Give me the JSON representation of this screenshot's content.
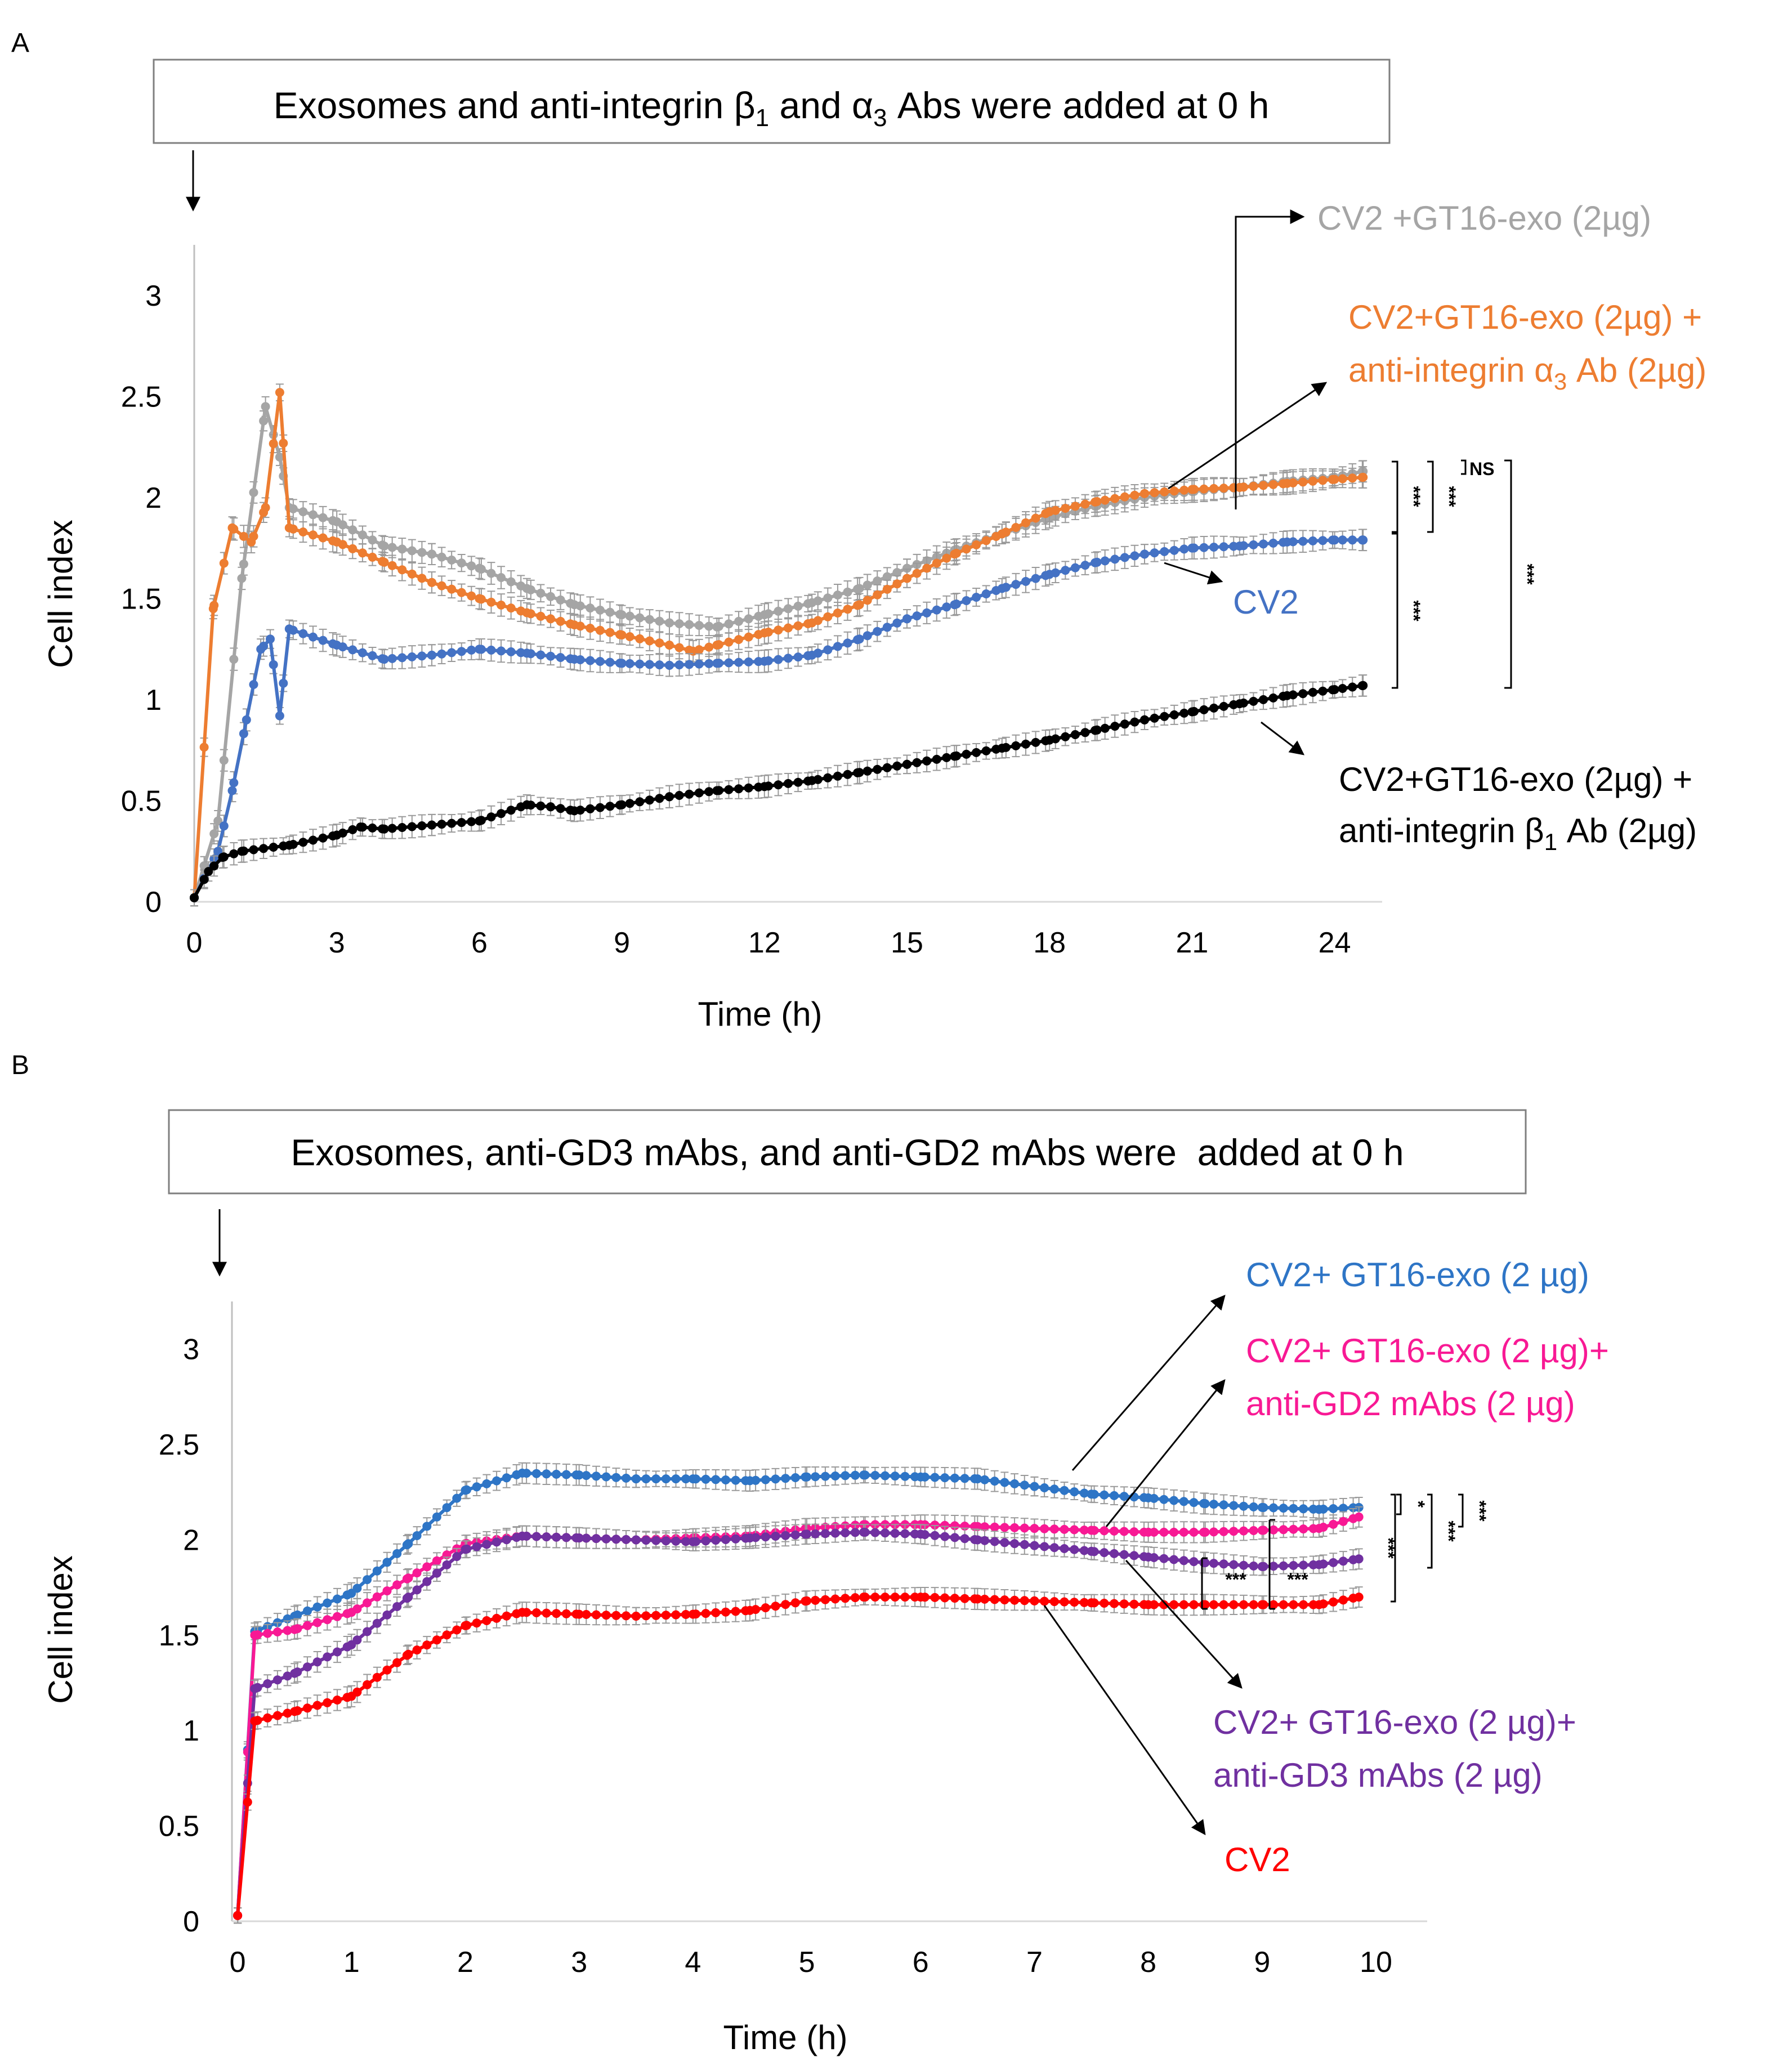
{
  "figure": {
    "background": "#ffffff"
  },
  "chart_data": [
    {
      "panel": "A",
      "type": "line",
      "banner": {
        "before": "Exosomes and anti-integrin β",
        "sub1": "1",
        "middle": " and α",
        "sub2": "3",
        "after": " Abs were added at 0 h"
      },
      "xlabel": "Time (h)",
      "ylabel": "Cell index",
      "xlim": [
        0,
        25
      ],
      "ylim": [
        0,
        3.25
      ],
      "xticks": [
        "0",
        "3",
        "6",
        "9",
        "12",
        "15",
        "18",
        "21",
        "24"
      ],
      "yticks": [
        "0",
        "0.5",
        "1",
        "1.5",
        "2",
        "2.5",
        "3"
      ],
      "series": [
        {
          "name": "CV2 +GT16-exo (2µg)",
          "color": "#A5A5A5",
          "points": [
            [
              0,
              0.02
            ],
            [
              0.5,
              0.4
            ],
            [
              1,
              1.6
            ],
            [
              1.5,
              2.45
            ],
            [
              1.8,
              2.2
            ],
            [
              2,
              1.95
            ],
            [
              3,
              1.88
            ],
            [
              4,
              1.76
            ],
            [
              5,
              1.72
            ],
            [
              6,
              1.65
            ],
            [
              7,
              1.55
            ],
            [
              8,
              1.47
            ],
            [
              9,
              1.42
            ],
            [
              10,
              1.38
            ],
            [
              11,
              1.36
            ],
            [
              12,
              1.42
            ],
            [
              13,
              1.48
            ],
            [
              14,
              1.55
            ],
            [
              15,
              1.65
            ],
            [
              16,
              1.74
            ],
            [
              17,
              1.82
            ],
            [
              18,
              1.9
            ],
            [
              19,
              1.96
            ],
            [
              20,
              2.0
            ],
            [
              21,
              2.03
            ],
            [
              22,
              2.05
            ],
            [
              23,
              2.08
            ],
            [
              24,
              2.1
            ],
            [
              24.6,
              2.13
            ]
          ]
        },
        {
          "name": "CV2+GT16-exo (2µg) + anti-integrin α3 Ab (2µg)",
          "label": {
            "line1": "CV2+GT16-exo (2µg) +",
            "line2_before": "anti-integrin α",
            "line2_sub": "3",
            "line2_after": " Ab (2µg)"
          },
          "color": "#ED7D31",
          "points": [
            [
              0,
              0.02
            ],
            [
              0.4,
              1.45
            ],
            [
              0.8,
              1.85
            ],
            [
              1.2,
              1.78
            ],
            [
              1.5,
              1.95
            ],
            [
              1.8,
              2.52
            ],
            [
              2,
              1.85
            ],
            [
              3,
              1.78
            ],
            [
              4,
              1.68
            ],
            [
              5,
              1.58
            ],
            [
              6,
              1.5
            ],
            [
              7,
              1.43
            ],
            [
              8,
              1.37
            ],
            [
              9,
              1.32
            ],
            [
              10,
              1.27
            ],
            [
              10.5,
              1.24
            ],
            [
              11,
              1.27
            ],
            [
              12,
              1.33
            ],
            [
              13,
              1.38
            ],
            [
              14,
              1.47
            ],
            [
              15,
              1.6
            ],
            [
              16,
              1.72
            ],
            [
              17,
              1.82
            ],
            [
              18,
              1.93
            ],
            [
              19,
              1.98
            ],
            [
              20,
              2.02
            ],
            [
              21,
              2.04
            ],
            [
              22,
              2.05
            ],
            [
              23,
              2.07
            ],
            [
              24,
              2.09
            ],
            [
              24.6,
              2.1
            ]
          ]
        },
        {
          "name": "CV2",
          "color": "#4472C4",
          "points": [
            [
              0,
              0.02
            ],
            [
              0.5,
              0.25
            ],
            [
              0.8,
              0.55
            ],
            [
              1.1,
              0.9
            ],
            [
              1.4,
              1.25
            ],
            [
              1.6,
              1.3
            ],
            [
              1.8,
              0.92
            ],
            [
              2,
              1.35
            ],
            [
              3,
              1.27
            ],
            [
              4,
              1.2
            ],
            [
              5,
              1.22
            ],
            [
              6,
              1.25
            ],
            [
              7,
              1.23
            ],
            [
              8,
              1.2
            ],
            [
              9,
              1.18
            ],
            [
              10,
              1.17
            ],
            [
              11,
              1.18
            ],
            [
              12,
              1.19
            ],
            [
              13,
              1.22
            ],
            [
              14,
              1.3
            ],
            [
              15,
              1.4
            ],
            [
              16,
              1.47
            ],
            [
              17,
              1.55
            ],
            [
              18,
              1.62
            ],
            [
              19,
              1.68
            ],
            [
              20,
              1.72
            ],
            [
              21,
              1.75
            ],
            [
              22,
              1.76
            ],
            [
              23,
              1.78
            ],
            [
              24,
              1.79
            ],
            [
              24.6,
              1.79
            ]
          ]
        },
        {
          "name": "CV2+GT16-exo (2µg) + anti-integrin β1 Ab (2µg)",
          "label": {
            "line1": "CV2+GT16-exo (2µg) +",
            "line2_before": "anti-integrin β",
            "line2_sub": "1",
            "line2_after": " Ab (2µg)"
          },
          "color": "#000000",
          "points": [
            [
              0,
              0.02
            ],
            [
              0.3,
              0.15
            ],
            [
              0.6,
              0.22
            ],
            [
              1,
              0.25
            ],
            [
              2,
              0.28
            ],
            [
              3,
              0.33
            ],
            [
              3.5,
              0.37
            ],
            [
              4,
              0.36
            ],
            [
              5,
              0.38
            ],
            [
              6,
              0.4
            ],
            [
              7,
              0.48
            ],
            [
              7.5,
              0.47
            ],
            [
              8,
              0.45
            ],
            [
              9,
              0.48
            ],
            [
              10,
              0.52
            ],
            [
              11,
              0.55
            ],
            [
              12,
              0.57
            ],
            [
              13,
              0.6
            ],
            [
              14,
              0.64
            ],
            [
              15,
              0.68
            ],
            [
              16,
              0.72
            ],
            [
              17,
              0.76
            ],
            [
              18,
              0.8
            ],
            [
              19,
              0.85
            ],
            [
              20,
              0.9
            ],
            [
              21,
              0.94
            ],
            [
              22,
              0.98
            ],
            [
              23,
              1.02
            ],
            [
              24,
              1.05
            ],
            [
              24.6,
              1.07
            ]
          ]
        }
      ],
      "significance": [
        "***",
        "***",
        "NS",
        "***",
        "***"
      ]
    },
    {
      "panel": "B",
      "type": "line",
      "banner": {
        "text": "Exosomes, anti-GD3 mAbs, and anti-GD2 mAbs were  added at 0 h"
      },
      "xlabel": "Time (h)",
      "ylabel": "Cell index",
      "xlim": [
        -0.05,
        10.45
      ],
      "ylim": [
        0,
        3.25
      ],
      "xticks": [
        "0",
        "1",
        "2",
        "3",
        "4",
        "5",
        "6",
        "7",
        "8",
        "9",
        "10"
      ],
      "yticks": [
        "0",
        "0.5",
        "1",
        "1.5",
        "2",
        "2.5",
        "3"
      ],
      "series": [
        {
          "name": "CV2+ GT16-exo (2 µg)",
          "color": "#2E75C6",
          "points": [
            [
              0,
              0.03
            ],
            [
              0.15,
              1.52
            ],
            [
              0.5,
              1.6
            ],
            [
              1,
              1.72
            ],
            [
              1.5,
              1.98
            ],
            [
              2,
              2.26
            ],
            [
              2.5,
              2.35
            ],
            [
              3,
              2.34
            ],
            [
              3.5,
              2.32
            ],
            [
              4,
              2.32
            ],
            [
              4.5,
              2.31
            ],
            [
              5,
              2.33
            ],
            [
              5.5,
              2.34
            ],
            [
              6,
              2.33
            ],
            [
              6.5,
              2.32
            ],
            [
              7,
              2.28
            ],
            [
              7.5,
              2.24
            ],
            [
              8,
              2.22
            ],
            [
              8.5,
              2.19
            ],
            [
              9,
              2.17
            ],
            [
              9.5,
              2.16
            ],
            [
              9.85,
              2.17
            ]
          ]
        },
        {
          "name": "CV2+ GT16-exo (2 µg)+ anti-GD2 mAbs (2 µg)",
          "label": {
            "line1": "CV2+ GT16-exo (2 µg)+",
            "line2": "anti-GD2 mAbs (2 µg)"
          },
          "color": "#F81994",
          "points": [
            [
              0,
              0.03
            ],
            [
              0.15,
              1.5
            ],
            [
              0.5,
              1.53
            ],
            [
              1,
              1.62
            ],
            [
              1.5,
              1.8
            ],
            [
              2,
              1.98
            ],
            [
              2.5,
              2.02
            ],
            [
              3,
              2.01
            ],
            [
              3.5,
              2.0
            ],
            [
              4,
              2.01
            ],
            [
              4.5,
              2.02
            ],
            [
              5,
              2.06
            ],
            [
              5.5,
              2.08
            ],
            [
              6,
              2.08
            ],
            [
              6.5,
              2.07
            ],
            [
              7,
              2.06
            ],
            [
              7.5,
              2.05
            ],
            [
              8,
              2.04
            ],
            [
              8.5,
              2.04
            ],
            [
              9,
              2.05
            ],
            [
              9.5,
              2.06
            ],
            [
              9.85,
              2.12
            ]
          ]
        },
        {
          "name": "CV2+ GT16-exo (2 µg)+ anti-GD3 mAbs (2 µg)",
          "label": {
            "line1": "CV2+ GT16-exo (2 µg)+",
            "line2": "anti-GD3 mAbs (2 µg)"
          },
          "color": "#7030A0",
          "points": [
            [
              0,
              0.03
            ],
            [
              0.15,
              1.22
            ],
            [
              0.5,
              1.3
            ],
            [
              1,
              1.45
            ],
            [
              1.5,
              1.7
            ],
            [
              2,
              1.95
            ],
            [
              2.5,
              2.02
            ],
            [
              3,
              2.01
            ],
            [
              3.5,
              2.0
            ],
            [
              4,
              1.99
            ],
            [
              4.5,
              2.01
            ],
            [
              5,
              2.03
            ],
            [
              5.5,
              2.04
            ],
            [
              6,
              2.03
            ],
            [
              6.5,
              2.0
            ],
            [
              7,
              1.97
            ],
            [
              7.5,
              1.94
            ],
            [
              8,
              1.91
            ],
            [
              8.5,
              1.88
            ],
            [
              9,
              1.86
            ],
            [
              9.5,
              1.87
            ],
            [
              9.85,
              1.9
            ]
          ]
        },
        {
          "name": "CV2",
          "color": "#FF0000",
          "points": [
            [
              0,
              0.03
            ],
            [
              0.15,
              1.05
            ],
            [
              0.5,
              1.1
            ],
            [
              1,
              1.18
            ],
            [
              1.5,
              1.4
            ],
            [
              2,
              1.55
            ],
            [
              2.5,
              1.62
            ],
            [
              3,
              1.61
            ],
            [
              3.5,
              1.6
            ],
            [
              4,
              1.61
            ],
            [
              4.5,
              1.63
            ],
            [
              5,
              1.68
            ],
            [
              5.5,
              1.7
            ],
            [
              6,
              1.7
            ],
            [
              6.5,
              1.69
            ],
            [
              7,
              1.68
            ],
            [
              7.5,
              1.67
            ],
            [
              8,
              1.66
            ],
            [
              8.5,
              1.66
            ],
            [
              9,
              1.66
            ],
            [
              9.5,
              1.66
            ],
            [
              9.85,
              1.7
            ]
          ]
        }
      ],
      "significance": [
        "*",
        "***",
        "***",
        "***",
        "***",
        "***"
      ]
    }
  ]
}
